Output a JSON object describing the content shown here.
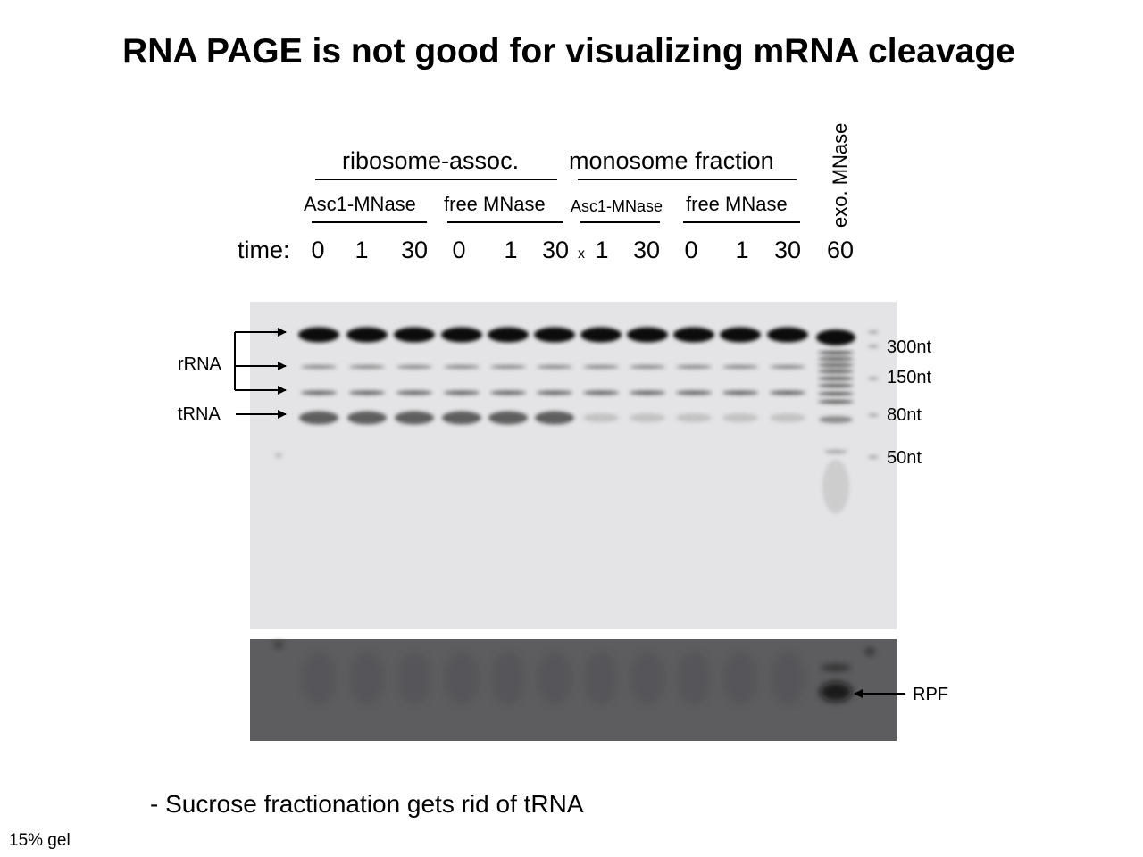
{
  "title": "RNA PAGE is not good for visualizing mRNA cleavage",
  "groups": {
    "ribosome": "ribosome-assoc.",
    "monosome": "monosome fraction"
  },
  "subgroups": [
    "Asc1-MNase",
    "free MNase",
    "Asc1-MNase",
    "free MNase"
  ],
  "exo_label": "exo. MNase",
  "time_label": "time:",
  "time_values": [
    "0",
    "1",
    "30",
    "0",
    "1",
    "30",
    "1",
    "30",
    "0",
    "1",
    "30",
    "60"
  ],
  "missing_lane_mark": "x",
  "left_labels": {
    "rrna": "rRNA",
    "trna": "tRNA"
  },
  "size_markers": [
    "300nt",
    "150nt",
    "80nt",
    "50nt"
  ],
  "rpf_label": "RPF",
  "note": "- Sucrose fractionation gets rid of tRNA",
  "footnote": "15% gel"
}
